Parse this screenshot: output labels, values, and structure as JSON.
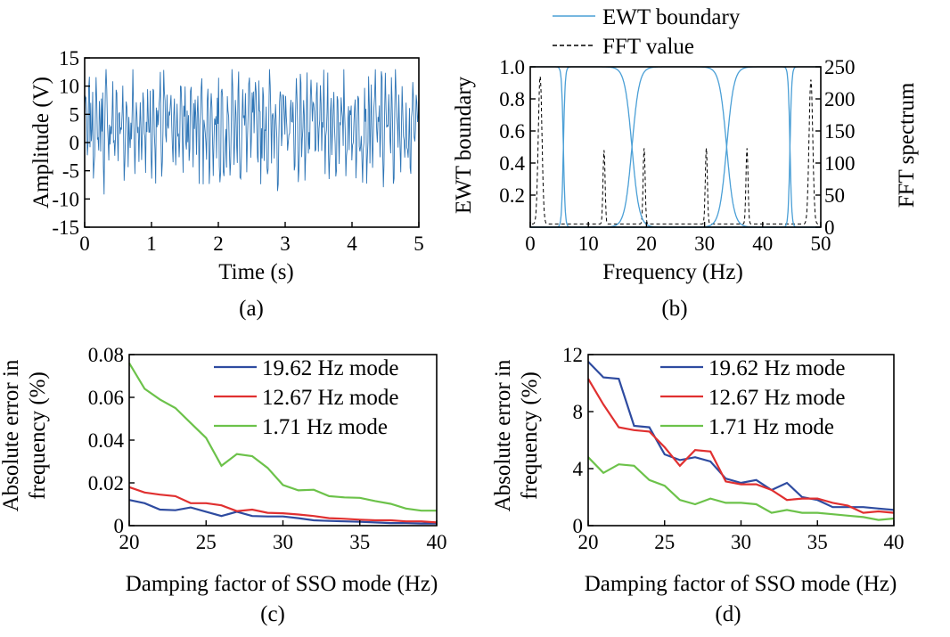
{
  "chart_data": [
    {
      "id": "a",
      "type": "line",
      "caption": "(a)",
      "xlabel": "Time (s)",
      "ylabel": "Amplitude (V)",
      "xlim": [
        0,
        5
      ],
      "ylim": [
        -15,
        15
      ],
      "xticks": [
        "0",
        "1",
        "2",
        "3",
        "4",
        "5"
      ],
      "yticks": [
        "15",
        "10",
        "5",
        "0",
        "-5",
        "-10",
        "-15"
      ],
      "series": [
        {
          "color": "#2e75b6",
          "note_values": "dense noisy oscillation between about -11 and 13 V over 0-5 s",
          "sample_count": 500
        }
      ]
    },
    {
      "id": "b",
      "type": "line",
      "caption": "(b)",
      "xlabel": "Frequency (Hz)",
      "ylabel": "EWT boundary",
      "ylabel_right": "FFT spectrum",
      "xlim": [
        0,
        50
      ],
      "ylim": [
        0,
        1.0
      ],
      "ylim_right": [
        0,
        250
      ],
      "xticks": [
        "0",
        "10",
        "20",
        "30",
        "40",
        "50"
      ],
      "yticks": [
        "1.0",
        "0.8",
        "0.6",
        "0.4",
        "0.2"
      ],
      "yticks_right": [
        "250",
        "200",
        "150",
        "100",
        "50",
        "0"
      ],
      "legend": [
        "EWT boundary",
        "FFT value"
      ],
      "boundaries_hz": [
        5.7,
        17.5,
        33.8,
        44.7
      ],
      "fft_peaks": [
        {
          "x": 1.7,
          "y": 230
        },
        {
          "x": 12.7,
          "y": 115
        },
        {
          "x": 19.6,
          "y": 118
        },
        {
          "x": 30.3,
          "y": 118
        },
        {
          "x": 37.3,
          "y": 118
        },
        {
          "x": 48.3,
          "y": 225
        }
      ]
    },
    {
      "id": "c",
      "type": "line",
      "caption": "(c)",
      "xlabel": "Damping factor of SSO mode (Hz)",
      "ylabel": "Absolute error in frequency (%)",
      "xlim": [
        20,
        40
      ],
      "ylim": [
        0,
        0.08
      ],
      "xticks": [
        "20",
        "25",
        "30",
        "35",
        "40"
      ],
      "yticks": [
        "0.08",
        "0.06",
        "0.04",
        "0.02",
        "0"
      ],
      "x": [
        20,
        21,
        22,
        23,
        24,
        25,
        26,
        27,
        28,
        29,
        30,
        31,
        32,
        33,
        34,
        35,
        36,
        37,
        38,
        39,
        40
      ],
      "series": [
        {
          "name": "19.62 Hz mode",
          "color": "#2e4ba0",
          "values": [
            0.012,
            0.0105,
            0.0075,
            0.0072,
            0.0085,
            0.0065,
            0.0045,
            0.0065,
            0.0045,
            0.0043,
            0.0043,
            0.0035,
            0.0025,
            0.0022,
            0.002,
            0.0018,
            0.0015,
            0.0012,
            0.0012,
            0.001,
            0.001
          ]
        },
        {
          "name": "12.67 Hz mode",
          "color": "#e03030",
          "values": [
            0.018,
            0.0155,
            0.0145,
            0.0138,
            0.0105,
            0.0105,
            0.0095,
            0.0068,
            0.0075,
            0.006,
            0.0058,
            0.0052,
            0.0045,
            0.0035,
            0.0032,
            0.0028,
            0.0025,
            0.0025,
            0.002,
            0.002,
            0.0015
          ]
        },
        {
          "name": "1.71 Hz mode",
          "color": "#6cc24a",
          "values": [
            0.076,
            0.064,
            0.059,
            0.055,
            0.048,
            0.041,
            0.028,
            0.0335,
            0.0325,
            0.027,
            0.019,
            0.0165,
            0.0168,
            0.0138,
            0.0132,
            0.013,
            0.0115,
            0.0102,
            0.008,
            0.007,
            0.007
          ]
        }
      ]
    },
    {
      "id": "d",
      "type": "line",
      "caption": "(d)",
      "xlabel": "Damping factor of SSO mode (Hz)",
      "ylabel": "Absolute error in frequency (%)",
      "xlim": [
        20,
        40
      ],
      "ylim": [
        0,
        12
      ],
      "xticks": [
        "20",
        "25",
        "30",
        "35",
        "40"
      ],
      "yticks": [
        "12",
        "8",
        "4",
        "0"
      ],
      "x": [
        20,
        21,
        22,
        23,
        24,
        25,
        26,
        27,
        28,
        29,
        30,
        31,
        32,
        33,
        34,
        35,
        36,
        37,
        38,
        39,
        40
      ],
      "series": [
        {
          "name": "19.62 Hz mode",
          "color": "#2e4ba0",
          "values": [
            11.5,
            10.4,
            10.3,
            7.0,
            6.9,
            5.0,
            4.6,
            4.8,
            4.5,
            3.3,
            3.0,
            3.2,
            2.5,
            3.0,
            2.0,
            1.8,
            1.3,
            1.3,
            1.3,
            1.2,
            1.1
          ]
        },
        {
          "name": "12.67 Hz mode",
          "color": "#e03030",
          "values": [
            10.3,
            8.5,
            6.9,
            6.7,
            6.6,
            5.5,
            4.2,
            5.3,
            5.2,
            3.1,
            2.9,
            2.9,
            2.5,
            1.8,
            1.9,
            1.9,
            1.6,
            1.4,
            0.9,
            1.0,
            0.9
          ]
        },
        {
          "name": "1.71 Hz mode",
          "color": "#6cc24a",
          "values": [
            4.8,
            3.7,
            4.3,
            4.2,
            3.2,
            2.8,
            1.8,
            1.5,
            1.9,
            1.6,
            1.6,
            1.5,
            0.9,
            1.1,
            0.9,
            0.9,
            0.8,
            0.7,
            0.6,
            0.4,
            0.5
          ]
        }
      ]
    }
  ]
}
